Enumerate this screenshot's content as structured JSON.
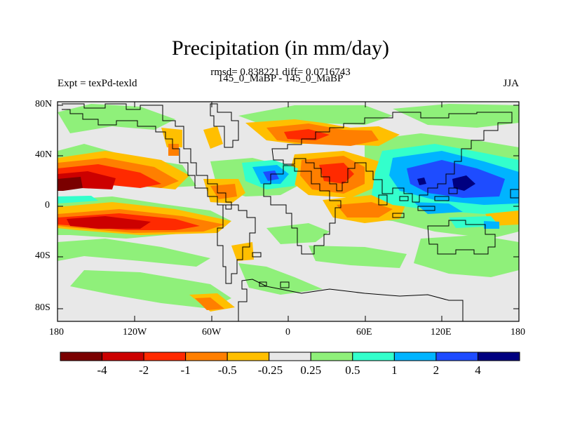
{
  "title": "Precipitation (in mm/day)",
  "subtitle_stats": "rmsd= 0.838221 diff= 0.0716743",
  "subtitle_runs": "145_0_MaBP - 145_0_MaBP",
  "left_label": "Expt = texPd-texld",
  "right_label": "JJA",
  "map": {
    "lat_ticks": [
      "80N",
      "40N",
      "0",
      "40S",
      "80S"
    ],
    "lon_ticks": [
      "180",
      "120W",
      "60W",
      "0",
      "60E",
      "120E",
      "180"
    ],
    "background_color": "#e8e8e8"
  },
  "colorbar": {
    "colors": [
      "#7a0000",
      "#cc0000",
      "#ff2a00",
      "#ff7f00",
      "#ffbf00",
      "#e8e8e8",
      "#8ff07a",
      "#33ffcc",
      "#00b4ff",
      "#1e4cff",
      "#000080"
    ],
    "labels": [
      "-4",
      "-2",
      "-1",
      "-0.5",
      "-0.25",
      "0.25",
      "0.5",
      "1",
      "2",
      "4"
    ]
  }
}
